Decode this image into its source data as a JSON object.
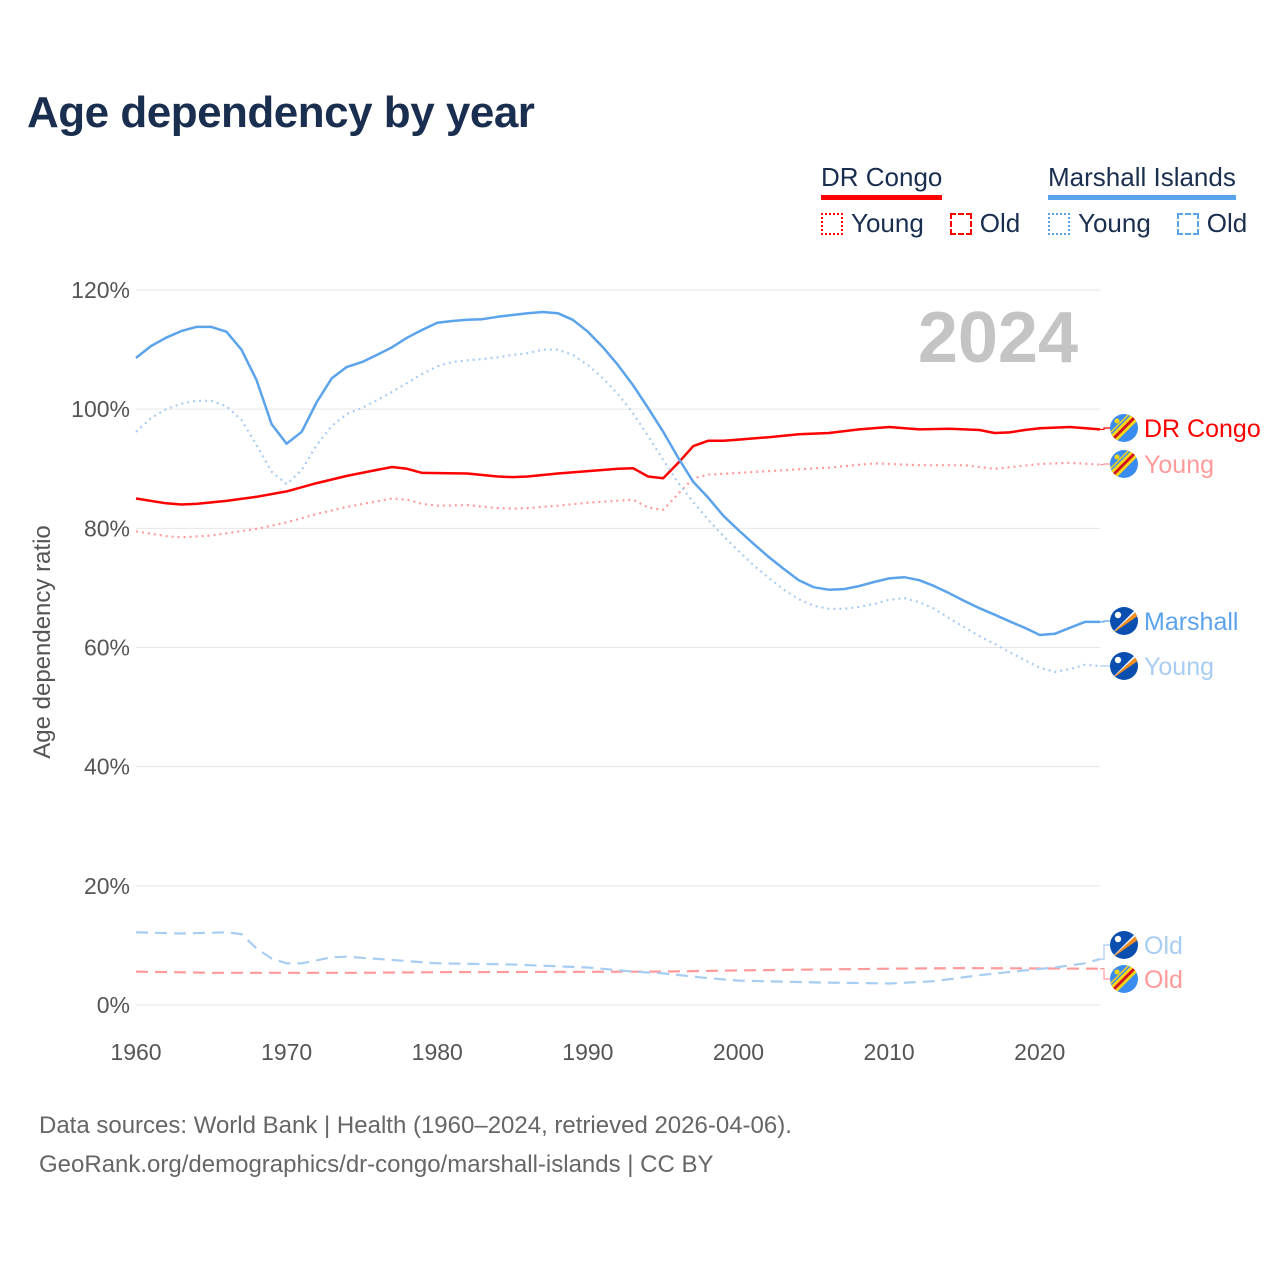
{
  "title": "Age dependency by year",
  "legend": {
    "groups": [
      {
        "country": "DR Congo",
        "color": "#ff0000",
        "items": [
          "Young",
          "Old"
        ]
      },
      {
        "country": "Marshall Islands",
        "color": "#5ba3ea",
        "items": [
          "Young",
          "Old"
        ]
      }
    ]
  },
  "year_label": "2024",
  "footer": {
    "line1": "Data sources: World Bank | Health (1960–2024, retrieved 2026-04-06).",
    "line2": "GeoRank.org/demographics/dr-congo/marshall-islands | CC BY"
  },
  "chart_data": {
    "type": "line",
    "title": "Age dependency by year",
    "xlabel": "",
    "ylabel": "Age dependency ratio",
    "xlim": [
      1960,
      2024
    ],
    "ylim": [
      0,
      120
    ],
    "x_ticks": [
      "1960",
      "1970",
      "1980",
      "1990",
      "2000",
      "2010",
      "2020"
    ],
    "y_ticks": [
      "0%",
      "20%",
      "40%",
      "60%",
      "80%",
      "100%",
      "120%"
    ],
    "grid": true,
    "series": [
      {
        "name": "DR Congo",
        "end_label": "DR Congo",
        "country": "drc",
        "color": "#ff0000",
        "style": "solid",
        "points": [
          [
            1960,
            85
          ],
          [
            1962,
            84.2
          ],
          [
            1963,
            84
          ],
          [
            1964,
            84.1
          ],
          [
            1966,
            84.6
          ],
          [
            1968,
            85.3
          ],
          [
            1970,
            86.2
          ],
          [
            1972,
            87.6
          ],
          [
            1974,
            88.8
          ],
          [
            1976,
            89.8
          ],
          [
            1977,
            90.3
          ],
          [
            1978,
            90
          ],
          [
            1979,
            89.3
          ],
          [
            1982,
            89.2
          ],
          [
            1984,
            88.7
          ],
          [
            1985,
            88.6
          ],
          [
            1986,
            88.7
          ],
          [
            1988,
            89.2
          ],
          [
            1990,
            89.6
          ],
          [
            1992,
            90
          ],
          [
            1993,
            90.1
          ],
          [
            1994,
            88.7
          ],
          [
            1995,
            88.4
          ],
          [
            1996,
            91
          ],
          [
            1997,
            93.8
          ],
          [
            1998,
            94.7
          ],
          [
            1999,
            94.7
          ],
          [
            2000,
            94.9
          ],
          [
            2002,
            95.3
          ],
          [
            2004,
            95.8
          ],
          [
            2006,
            96
          ],
          [
            2008,
            96.6
          ],
          [
            2010,
            97
          ],
          [
            2012,
            96.6
          ],
          [
            2014,
            96.7
          ],
          [
            2016,
            96.5
          ],
          [
            2017,
            96
          ],
          [
            2018,
            96.1
          ],
          [
            2019,
            96.5
          ],
          [
            2020,
            96.8
          ],
          [
            2022,
            97
          ],
          [
            2024,
            96.6
          ]
        ]
      },
      {
        "name": "DR Congo Young",
        "end_label": "Young",
        "country": "drc",
        "color": "#ff9a9a",
        "style": "dotted",
        "points": [
          [
            1960,
            79.5
          ],
          [
            1962,
            78.7
          ],
          [
            1963,
            78.5
          ],
          [
            1965,
            78.8
          ],
          [
            1968,
            79.9
          ],
          [
            1970,
            81
          ],
          [
            1972,
            82.4
          ],
          [
            1974,
            83.6
          ],
          [
            1977,
            85
          ],
          [
            1978,
            84.8
          ],
          [
            1979,
            84.1
          ],
          [
            1980,
            83.8
          ],
          [
            1982,
            83.9
          ],
          [
            1984,
            83.4
          ],
          [
            1985,
            83.3
          ],
          [
            1986,
            83.4
          ],
          [
            1988,
            83.8
          ],
          [
            1990,
            84.3
          ],
          [
            1993,
            84.8
          ],
          [
            1994,
            83.5
          ],
          [
            1995,
            83.1
          ],
          [
            1996,
            85.8
          ],
          [
            1997,
            88.4
          ],
          [
            1998,
            89
          ],
          [
            2000,
            89.3
          ],
          [
            2004,
            89.9
          ],
          [
            2006,
            90.2
          ],
          [
            2009,
            90.9
          ],
          [
            2012,
            90.6
          ],
          [
            2015,
            90.6
          ],
          [
            2017,
            90
          ],
          [
            2020,
            90.8
          ],
          [
            2022,
            91
          ],
          [
            2024,
            90.7
          ]
        ]
      },
      {
        "name": "DR Congo Old",
        "end_label": "Old",
        "country": "drc",
        "color": "#ff9a9a",
        "style": "dashed",
        "points": [
          [
            1960,
            5.6
          ],
          [
            1965,
            5.4
          ],
          [
            1975,
            5.4
          ],
          [
            1980,
            5.5
          ],
          [
            1995,
            5.6
          ],
          [
            2000,
            5.8
          ],
          [
            2010,
            6.1
          ],
          [
            2015,
            6.2
          ],
          [
            2024,
            6.1
          ]
        ]
      },
      {
        "name": "Marshall Islands",
        "end_label": "Marshall",
        "country": "mhl",
        "color": "#5ba3ea",
        "style": "solid",
        "points": [
          [
            1960,
            108.6
          ],
          [
            1961,
            110.6
          ],
          [
            1962,
            112
          ],
          [
            1963,
            113.1
          ],
          [
            1964,
            113.8
          ],
          [
            1965,
            113.8
          ],
          [
            1966,
            113
          ],
          [
            1967,
            110
          ],
          [
            1968,
            104.9
          ],
          [
            1969,
            97.5
          ],
          [
            1970,
            94.2
          ],
          [
            1971,
            96.2
          ],
          [
            1972,
            101.2
          ],
          [
            1973,
            105.2
          ],
          [
            1974,
            107.1
          ],
          [
            1975,
            107.9
          ],
          [
            1976,
            109.1
          ],
          [
            1977,
            110.4
          ],
          [
            1978,
            112
          ],
          [
            1979,
            113.3
          ],
          [
            1980,
            114.5
          ],
          [
            1981,
            114.8
          ],
          [
            1982,
            115
          ],
          [
            1983,
            115.1
          ],
          [
            1984,
            115.5
          ],
          [
            1985,
            115.8
          ],
          [
            1986,
            116.1
          ],
          [
            1987,
            116.3
          ],
          [
            1988,
            116.1
          ],
          [
            1989,
            115
          ],
          [
            1990,
            113
          ],
          [
            1991,
            110.4
          ],
          [
            1992,
            107.4
          ],
          [
            1993,
            104
          ],
          [
            1994,
            100.2
          ],
          [
            1995,
            96.2
          ],
          [
            1996,
            91.8
          ],
          [
            1997,
            87.8
          ],
          [
            1998,
            85.1
          ],
          [
            1999,
            82.1
          ],
          [
            2000,
            79.7
          ],
          [
            2001,
            77.4
          ],
          [
            2002,
            75.2
          ],
          [
            2003,
            73.2
          ],
          [
            2004,
            71.3
          ],
          [
            2005,
            70.1
          ],
          [
            2006,
            69.7
          ],
          [
            2007,
            69.8
          ],
          [
            2008,
            70.3
          ],
          [
            2009,
            71
          ],
          [
            2010,
            71.6
          ],
          [
            2011,
            71.8
          ],
          [
            2012,
            71.3
          ],
          [
            2013,
            70.3
          ],
          [
            2014,
            69.1
          ],
          [
            2015,
            67.8
          ],
          [
            2016,
            66.6
          ],
          [
            2017,
            65.5
          ],
          [
            2018,
            64.4
          ],
          [
            2019,
            63.3
          ],
          [
            2020,
            62.1
          ],
          [
            2021,
            62.3
          ],
          [
            2022,
            63.3
          ],
          [
            2023,
            64.3
          ],
          [
            2024,
            64.3
          ]
        ]
      },
      {
        "name": "Marshall Islands Young",
        "end_label": "Young",
        "country": "mhl",
        "color": "#a8cdf2",
        "style": "dotted",
        "points": [
          [
            1960,
            96.2
          ],
          [
            1961,
            98.5
          ],
          [
            1962,
            100
          ],
          [
            1963,
            100.9
          ],
          [
            1964,
            101.4
          ],
          [
            1965,
            101.4
          ],
          [
            1966,
            100.5
          ],
          [
            1967,
            98.2
          ],
          [
            1968,
            94
          ],
          [
            1969,
            89.5
          ],
          [
            1970,
            87.4
          ],
          [
            1971,
            89.8
          ],
          [
            1972,
            94
          ],
          [
            1973,
            97.2
          ],
          [
            1974,
            99.2
          ],
          [
            1975,
            100.2
          ],
          [
            1976,
            101.5
          ],
          [
            1977,
            102.9
          ],
          [
            1978,
            104.4
          ],
          [
            1979,
            105.9
          ],
          [
            1980,
            107.2
          ],
          [
            1981,
            107.9
          ],
          [
            1982,
            108.2
          ],
          [
            1983,
            108.4
          ],
          [
            1984,
            108.7
          ],
          [
            1985,
            109.1
          ],
          [
            1986,
            109.4
          ],
          [
            1987,
            110
          ],
          [
            1988,
            110
          ],
          [
            1989,
            109.1
          ],
          [
            1990,
            107.4
          ],
          [
            1991,
            105.2
          ],
          [
            1992,
            102.5
          ],
          [
            1993,
            99.3
          ],
          [
            1994,
            95.5
          ],
          [
            1995,
            91.5
          ],
          [
            1996,
            87.6
          ],
          [
            1997,
            84.4
          ],
          [
            1998,
            81.4
          ],
          [
            1999,
            78.7
          ],
          [
            2000,
            76.2
          ],
          [
            2001,
            73.8
          ],
          [
            2002,
            71.7
          ],
          [
            2003,
            69.7
          ],
          [
            2004,
            68.1
          ],
          [
            2005,
            67
          ],
          [
            2006,
            66.5
          ],
          [
            2007,
            66.5
          ],
          [
            2008,
            66.8
          ],
          [
            2009,
            67.3
          ],
          [
            2010,
            68
          ],
          [
            2011,
            68.3
          ],
          [
            2012,
            67.6
          ],
          [
            2013,
            66.5
          ],
          [
            2014,
            64.9
          ],
          [
            2015,
            63.4
          ],
          [
            2016,
            61.9
          ],
          [
            2017,
            60.6
          ],
          [
            2018,
            59.2
          ],
          [
            2019,
            57.9
          ],
          [
            2020,
            56.6
          ],
          [
            2021,
            55.9
          ],
          [
            2022,
            56.4
          ],
          [
            2023,
            57.1
          ],
          [
            2024,
            56.9
          ]
        ]
      },
      {
        "name": "Marshall Islands Old",
        "end_label": "Old",
        "country": "mhl",
        "color": "#a8cdf2",
        "style": "dashed",
        "points": [
          [
            1960,
            12.2
          ],
          [
            1963,
            12
          ],
          [
            1966,
            12.2
          ],
          [
            1967,
            11.9
          ],
          [
            1968,
            9.5
          ],
          [
            1969,
            7.8
          ],
          [
            1970,
            7
          ],
          [
            1971,
            7
          ],
          [
            1972,
            7.5
          ],
          [
            1973,
            8
          ],
          [
            1974,
            8.1
          ],
          [
            1980,
            7
          ],
          [
            1985,
            6.8
          ],
          [
            1990,
            6.3
          ],
          [
            1993,
            5.6
          ],
          [
            1995,
            5.3
          ],
          [
            1998,
            4.5
          ],
          [
            2000,
            4.1
          ],
          [
            2005,
            3.8
          ],
          [
            2010,
            3.6
          ],
          [
            2013,
            4
          ],
          [
            2016,
            5
          ],
          [
            2019,
            5.8
          ],
          [
            2021,
            6.3
          ],
          [
            2023,
            7
          ],
          [
            2024,
            7.7
          ]
        ]
      }
    ]
  }
}
